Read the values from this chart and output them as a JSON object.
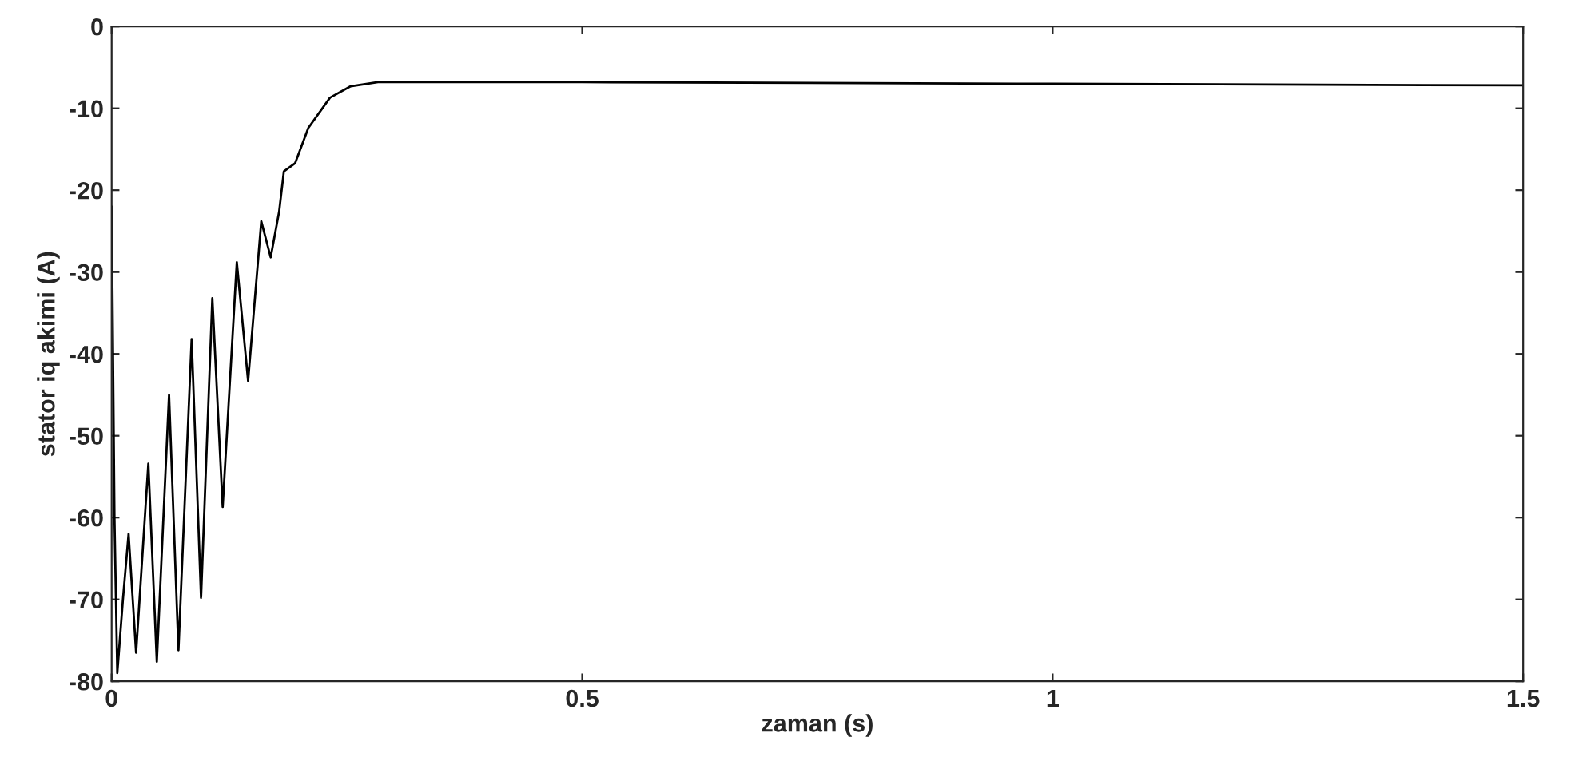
{
  "chart_data": {
    "type": "line",
    "xlabel": "zaman (s)",
    "ylabel": "stator iq akimi (A)",
    "xlim": [
      0,
      1.5
    ],
    "ylim": [
      -80,
      0
    ],
    "xticks": [
      0,
      0.5,
      1,
      1.5
    ],
    "yticks": [
      0,
      -10,
      -20,
      -30,
      -40,
      -50,
      -60,
      -70,
      -80
    ],
    "grid": false,
    "series": [
      {
        "color": "#000000",
        "x": [
          0,
          0.003,
          0.006,
          0.012,
          0.018,
          0.026,
          0.039,
          0.048,
          0.061,
          0.071,
          0.085,
          0.095,
          0.107,
          0.118,
          0.133,
          0.145,
          0.159,
          0.169,
          0.178,
          0.183,
          0.195,
          0.209,
          0.232,
          0.254,
          0.283,
          0.5,
          1.0,
          1.5
        ],
        "values": [
          -22,
          -60,
          -79,
          -70,
          -62,
          -76.5,
          -53.4,
          -77.6,
          -45,
          -76.2,
          -38.2,
          -69.8,
          -33.2,
          -58.7,
          -28.8,
          -43.3,
          -23.8,
          -28.2,
          -22.6,
          -17.7,
          -16.7,
          -12.4,
          -8.7,
          -7.3,
          -6.8,
          -6.8,
          -7,
          -7.2
        ]
      }
    ]
  }
}
